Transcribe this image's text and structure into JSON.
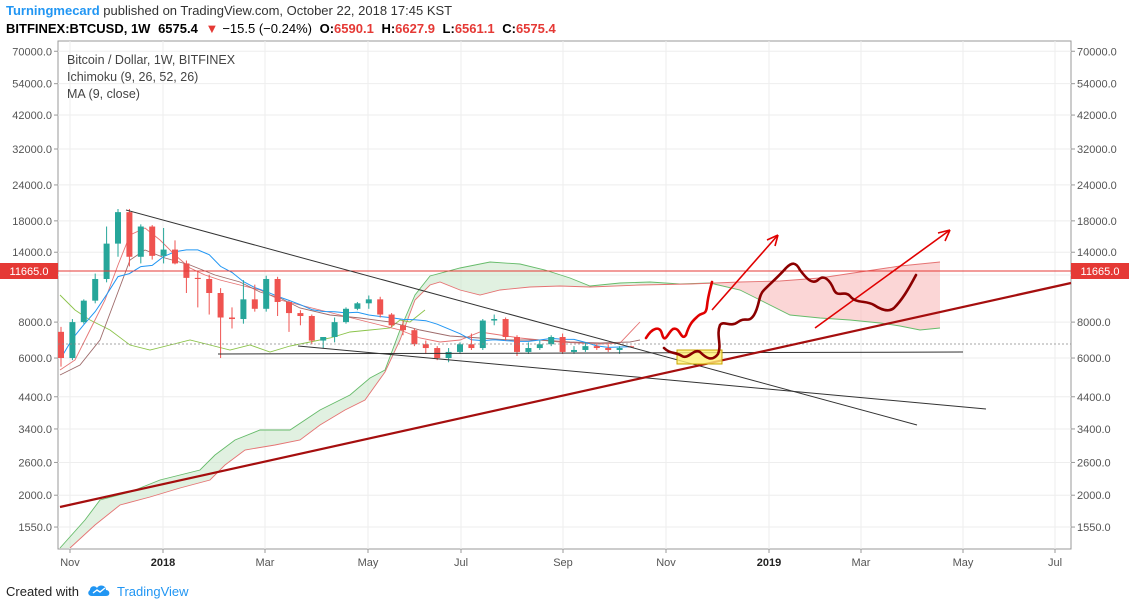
{
  "header": {
    "author": "Turningmecard",
    "published": "published on TradingView.com, October 22, 2018 17:45 KST",
    "symbol": "BITFINEX:BTCUSD, 1W",
    "last": "6575.4",
    "change_arrow": "▼",
    "change": "−15.5 (−0.24%)",
    "ohlc": [
      {
        "k": "O:",
        "v": "6590.1"
      },
      {
        "k": "H:",
        "v": "6627.9"
      },
      {
        "k": "L:",
        "v": "6561.1"
      },
      {
        "k": "C:",
        "v": "6575.4"
      }
    ]
  },
  "legend": {
    "title": "Bitcoin / Dollar, 1W, BITFINEX",
    "ichimoku": "Ichimoku (9, 26, 52, 26)",
    "ma": "MA (9, close)"
  },
  "footer": {
    "created": "Created with",
    "brand": "TradingView"
  },
  "colors": {
    "up": "#26a69a",
    "down": "#ef5350",
    "accent": "#2196f3",
    "trend": "#a50e0e",
    "hline": "#e53935"
  },
  "chart_data": {
    "type": "candlestick",
    "title": "Bitcoin / Dollar, 1W, BITFINEX",
    "scale": "log",
    "y_ticks": [
      1550,
      2000,
      2600,
      3400,
      4400,
      6000,
      8000,
      11665,
      14000,
      18000,
      24000,
      32000,
      42000,
      54000,
      70000
    ],
    "y_tick_labels": [
      "1550.0",
      "2000.0",
      "2600.0",
      "3400.0",
      "4400.0",
      "6000.0",
      "8000.0",
      "",
      "14000.0",
      "18000.0",
      "24000.0",
      "32000.0",
      "42000.0",
      "54000.0",
      "70000.0"
    ],
    "x_ticks": [
      "Nov",
      "2018",
      "Mar",
      "May",
      "Jul",
      "Sep",
      "Nov",
      "2019",
      "Mar",
      "May",
      "Jul"
    ],
    "hline": {
      "value": 11665.0,
      "label": "11665.0"
    },
    "candles": [
      {
        "o": 7400,
        "h": 7700,
        "l": 5600,
        "c": 6000
      },
      {
        "o": 6000,
        "h": 8200,
        "l": 5900,
        "c": 8000
      },
      {
        "o": 8000,
        "h": 9600,
        "l": 7900,
        "c": 9500
      },
      {
        "o": 9500,
        "h": 11800,
        "l": 9300,
        "c": 11300
      },
      {
        "o": 11300,
        "h": 17200,
        "l": 11000,
        "c": 15000
      },
      {
        "o": 15000,
        "h": 19800,
        "l": 13500,
        "c": 19300
      },
      {
        "o": 19300,
        "h": 19800,
        "l": 12500,
        "c": 13500
      },
      {
        "o": 13500,
        "h": 17500,
        "l": 12800,
        "c": 17200
      },
      {
        "o": 17200,
        "h": 17400,
        "l": 13200,
        "c": 13600
      },
      {
        "o": 13600,
        "h": 17000,
        "l": 12800,
        "c": 14300
      },
      {
        "o": 14300,
        "h": 15400,
        "l": 12700,
        "c": 12800
      },
      {
        "o": 12800,
        "h": 13100,
        "l": 10100,
        "c": 11400
      },
      {
        "o": 11400,
        "h": 12000,
        "l": 9000,
        "c": 11300
      },
      {
        "o": 11300,
        "h": 11700,
        "l": 8500,
        "c": 10100
      },
      {
        "o": 10100,
        "h": 10500,
        "l": 6000,
        "c": 8300
      },
      {
        "o": 8300,
        "h": 9000,
        "l": 7600,
        "c": 8200
      },
      {
        "o": 8200,
        "h": 11200,
        "l": 7900,
        "c": 9600
      },
      {
        "o": 9600,
        "h": 10800,
        "l": 8700,
        "c": 8900
      },
      {
        "o": 8900,
        "h": 11600,
        "l": 8700,
        "c": 11300
      },
      {
        "o": 11300,
        "h": 11500,
        "l": 8400,
        "c": 9400
      },
      {
        "o": 9400,
        "h": 9500,
        "l": 7400,
        "c": 8600
      },
      {
        "o": 8600,
        "h": 8800,
        "l": 7800,
        "c": 8400
      },
      {
        "o": 8400,
        "h": 8500,
        "l": 6700,
        "c": 6900
      },
      {
        "o": 6900,
        "h": 7100,
        "l": 6500,
        "c": 7100
      },
      {
        "o": 7100,
        "h": 8300,
        "l": 6800,
        "c": 8000
      },
      {
        "o": 8000,
        "h": 9000,
        "l": 7900,
        "c": 8900
      },
      {
        "o": 8900,
        "h": 9400,
        "l": 8800,
        "c": 9300
      },
      {
        "o": 9300,
        "h": 9900,
        "l": 8900,
        "c": 9600
      },
      {
        "o": 9600,
        "h": 9800,
        "l": 8300,
        "c": 8500
      },
      {
        "o": 8500,
        "h": 8600,
        "l": 7700,
        "c": 7800
      },
      {
        "o": 7800,
        "h": 8100,
        "l": 7200,
        "c": 7500
      },
      {
        "o": 7500,
        "h": 7600,
        "l": 6600,
        "c": 6700
      },
      {
        "o": 6700,
        "h": 6900,
        "l": 6200,
        "c": 6500
      },
      {
        "o": 6500,
        "h": 6600,
        "l": 5900,
        "c": 6000
      },
      {
        "o": 6000,
        "h": 6500,
        "l": 5800,
        "c": 6300
      },
      {
        "o": 6300,
        "h": 6800,
        "l": 6200,
        "c": 6700
      },
      {
        "o": 6700,
        "h": 7300,
        "l": 6400,
        "c": 6500
      },
      {
        "o": 6500,
        "h": 8200,
        "l": 6400,
        "c": 8100
      },
      {
        "o": 8100,
        "h": 8500,
        "l": 7800,
        "c": 8200
      },
      {
        "o": 8200,
        "h": 8300,
        "l": 6900,
        "c": 7100
      },
      {
        "o": 7100,
        "h": 7200,
        "l": 6100,
        "c": 6300
      },
      {
        "o": 6300,
        "h": 6800,
        "l": 6200,
        "c": 6500
      },
      {
        "o": 6500,
        "h": 6900,
        "l": 6400,
        "c": 6700
      },
      {
        "o": 6700,
        "h": 7200,
        "l": 6600,
        "c": 7100
      },
      {
        "o": 7100,
        "h": 7300,
        "l": 6200,
        "c": 6300
      },
      {
        "o": 6300,
        "h": 6600,
        "l": 6200,
        "c": 6400
      },
      {
        "o": 6400,
        "h": 6800,
        "l": 6300,
        "c": 6600
      },
      {
        "o": 6600,
        "h": 6700,
        "l": 6400,
        "c": 6500
      },
      {
        "o": 6500,
        "h": 6700,
        "l": 6300,
        "c": 6400
      },
      {
        "o": 6400,
        "h": 6600,
        "l": 6200,
        "c": 6500
      },
      {
        "o": 6590,
        "h": 6628,
        "l": 6561,
        "c": 6575
      }
    ]
  }
}
